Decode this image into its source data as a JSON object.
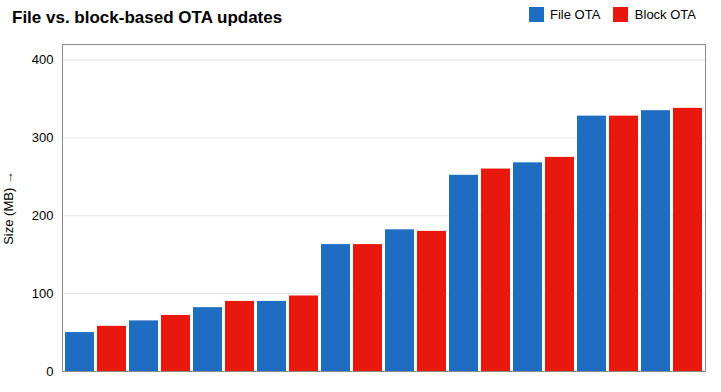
{
  "chart_data": {
    "type": "bar",
    "title": "File vs. block-based OTA updates",
    "ylabel": "Size (MB)",
    "categories": [
      null,
      null,
      null,
      null,
      null,
      null,
      null,
      null,
      null,
      null
    ],
    "series": [
      {
        "name": "File OTA",
        "color": "#1f6dc1",
        "values": [
          50,
          65,
          82,
          90,
          163,
          182,
          252,
          268,
          328,
          335
        ]
      },
      {
        "name": "Block OTA",
        "color": "#e8180c",
        "values": [
          58,
          72,
          90,
          97,
          163,
          180,
          260,
          275,
          328,
          338
        ]
      }
    ],
    "ylim": [
      0,
      420
    ],
    "yticks": [
      0,
      100,
      200,
      300,
      400
    ],
    "grid": true,
    "legend": "upper right",
    "tick_labels": "y"
  }
}
